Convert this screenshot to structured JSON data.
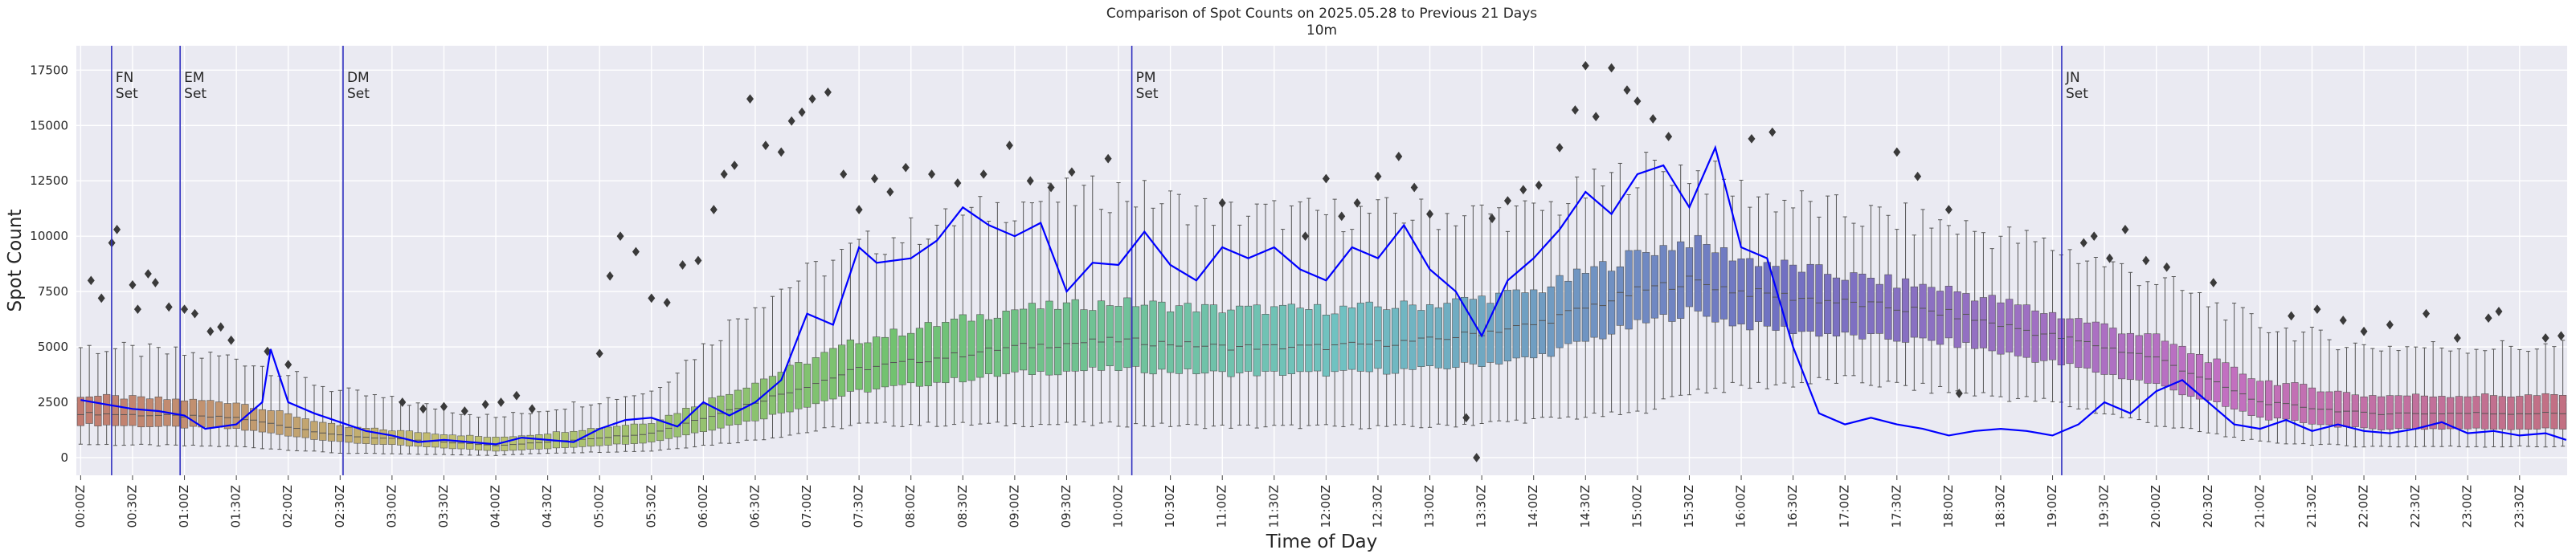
{
  "chart_data": {
    "type": "box",
    "title": "Comparison of Spot Counts on 2025.05.28 to Previous 21 Days",
    "subtitle": "10m",
    "xlabel": "Time of Day",
    "ylabel": "Spot Count",
    "ylim": [
      -800,
      18600
    ],
    "yticks": [
      0,
      2500,
      5000,
      7500,
      10000,
      12500,
      15000,
      17500
    ],
    "ytick_labels": [
      "0",
      "2500",
      "5000",
      "7500",
      "10000",
      "12500",
      "15000",
      "17500"
    ],
    "xtick_labels": [
      "00:00Z",
      "00:30Z",
      "01:00Z",
      "01:30Z",
      "02:00Z",
      "02:30Z",
      "03:00Z",
      "03:30Z",
      "04:00Z",
      "04:30Z",
      "05:00Z",
      "05:30Z",
      "06:00Z",
      "06:30Z",
      "07:00Z",
      "07:30Z",
      "08:00Z",
      "08:30Z",
      "09:00Z",
      "09:30Z",
      "10:00Z",
      "10:30Z",
      "11:00Z",
      "11:30Z",
      "12:00Z",
      "12:30Z",
      "13:00Z",
      "13:30Z",
      "14:00Z",
      "14:30Z",
      "15:00Z",
      "15:30Z",
      "16:00Z",
      "16:30Z",
      "17:00Z",
      "17:30Z",
      "18:00Z",
      "18:30Z",
      "19:00Z",
      "19:30Z",
      "20:00Z",
      "20:30Z",
      "21:00Z",
      "21:30Z",
      "22:00Z",
      "22:30Z",
      "23:00Z",
      "23:30Z"
    ],
    "bins_per_hour": 12,
    "grid": true,
    "background": "#eaeaf2",
    "line_color": "#0000ff",
    "marker_color": "#3030c0",
    "box_percentile_anchors": {
      "hours": [
        0,
        1.5,
        2.5,
        4,
        4.5,
        5.5,
        6.5,
        7.5,
        9,
        10,
        11,
        12,
        13,
        14,
        15,
        15.5,
        16,
        17,
        18,
        19,
        20,
        21,
        22,
        23,
        24
      ],
      "median": [
        2000,
        1800,
        1000,
        550,
        700,
        1100,
        2500,
        4000,
        5000,
        5300,
        5000,
        5000,
        5300,
        6000,
        7500,
        8000,
        7500,
        7000,
        6500,
        5500,
        4500,
        2500,
        2000,
        2000,
        2000
      ],
      "q1": [
        1500,
        1300,
        700,
        300,
        400,
        700,
        1700,
        3000,
        3800,
        4000,
        3800,
        3800,
        4000,
        4500,
        6000,
        6600,
        6000,
        5500,
        5200,
        4300,
        3300,
        1800,
        1300,
        1300,
        1300
      ],
      "q3": [
        2800,
        2500,
        1400,
        900,
        1100,
        1600,
        3400,
        5300,
        6700,
        7000,
        6700,
        6700,
        6900,
        7500,
        9200,
        9800,
        9000,
        8200,
        7600,
        6500,
        5400,
        3500,
        2800,
        2800,
        2800
      ],
      "low": [
        600,
        500,
        200,
        100,
        200,
        300,
        800,
        1500,
        1500,
        1500,
        1400,
        1400,
        1400,
        1700,
        2000,
        3000,
        3200,
        3500,
        3000,
        2500,
        1500,
        700,
        500,
        500,
        500
      ],
      "high": [
        5000,
        4500,
        3000,
        1800,
        2200,
        3000,
        7000,
        9500,
        11500,
        12000,
        11000,
        11000,
        11000,
        11000,
        13000,
        13000,
        12000,
        11000,
        10500,
        9500,
        8000,
        6000,
        5000,
        5000,
        5000
      ]
    },
    "series": [
      {
        "name": "2025.05.28",
        "x_hours": [
          0,
          0.25,
          0.5,
          0.75,
          1,
          1.2,
          1.5,
          1.75,
          1.83,
          2,
          2.25,
          2.5,
          2.75,
          3,
          3.25,
          3.5,
          3.75,
          4,
          4.25,
          4.5,
          4.75,
          5,
          5.25,
          5.5,
          5.75,
          6,
          6.25,
          6.5,
          6.75,
          7,
          7.25,
          7.5,
          7.67,
          8,
          8.25,
          8.5,
          8.75,
          9,
          9.25,
          9.5,
          9.75,
          10,
          10.25,
          10.5,
          10.75,
          11,
          11.25,
          11.5,
          11.75,
          12,
          12.25,
          12.5,
          12.75,
          13,
          13.25,
          13.5,
          13.75,
          14,
          14.25,
          14.5,
          14.75,
          15,
          15.25,
          15.5,
          15.75,
          16,
          16.25,
          16.5,
          16.75,
          17,
          17.25,
          17.5,
          17.75,
          18,
          18.25,
          18.5,
          18.75,
          19,
          19.25,
          19.5,
          19.75,
          20,
          20.25,
          20.5,
          20.75,
          21,
          21.25,
          21.5,
          21.75,
          22,
          22.25,
          22.5,
          22.75,
          23,
          23.25,
          23.5,
          23.75,
          23.95
        ],
        "values": [
          2600,
          2400,
          2200,
          2100,
          1900,
          1300,
          1500,
          2500,
          4900,
          2500,
          2000,
          1600,
          1200,
          1000,
          700,
          800,
          700,
          600,
          900,
          800,
          700,
          1300,
          1700,
          1800,
          1400,
          2500,
          1900,
          2500,
          3500,
          6500,
          6000,
          9500,
          8800,
          9000,
          9800,
          11300,
          10500,
          10000,
          10600,
          7500,
          8800,
          8700,
          10200,
          8700,
          8000,
          9500,
          9000,
          9500,
          8500,
          8000,
          9500,
          9000,
          10500,
          8500,
          7500,
          5500,
          8000,
          9000,
          10300,
          12000,
          11000,
          12800,
          13200,
          11300,
          14000,
          9500,
          9000,
          5000,
          2000,
          1500,
          1800,
          1500,
          1300,
          1000,
          1200,
          1300,
          1200,
          1000,
          1500,
          2500,
          2000,
          3000,
          3500,
          2500,
          1500,
          1300,
          1700,
          1200,
          1500,
          1200,
          1100,
          1300,
          1600,
          1100,
          1200,
          1000,
          1100,
          800
        ]
      }
    ],
    "outliers": [
      {
        "h": 0.1,
        "v": 8000
      },
      {
        "h": 0.2,
        "v": 7200
      },
      {
        "h": 0.3,
        "v": 9700
      },
      {
        "h": 0.35,
        "v": 10300
      },
      {
        "h": 0.5,
        "v": 7800
      },
      {
        "h": 0.55,
        "v": 6700
      },
      {
        "h": 0.65,
        "v": 8300
      },
      {
        "h": 0.72,
        "v": 7900
      },
      {
        "h": 0.85,
        "v": 6800
      },
      {
        "h": 1.0,
        "v": 6700
      },
      {
        "h": 1.1,
        "v": 6500
      },
      {
        "h": 1.25,
        "v": 5700
      },
      {
        "h": 1.35,
        "v": 5900
      },
      {
        "h": 1.45,
        "v": 5300
      },
      {
        "h": 1.8,
        "v": 4800
      },
      {
        "h": 2.0,
        "v": 4200
      },
      {
        "h": 3.1,
        "v": 2500
      },
      {
        "h": 3.3,
        "v": 2200
      },
      {
        "h": 3.5,
        "v": 2300
      },
      {
        "h": 3.7,
        "v": 2100
      },
      {
        "h": 3.9,
        "v": 2400
      },
      {
        "h": 4.05,
        "v": 2500
      },
      {
        "h": 4.2,
        "v": 2800
      },
      {
        "h": 4.35,
        "v": 2200
      },
      {
        "h": 5.0,
        "v": 4700
      },
      {
        "h": 5.1,
        "v": 8200
      },
      {
        "h": 5.2,
        "v": 10000
      },
      {
        "h": 5.35,
        "v": 9300
      },
      {
        "h": 5.5,
        "v": 7200
      },
      {
        "h": 5.65,
        "v": 7000
      },
      {
        "h": 5.8,
        "v": 8700
      },
      {
        "h": 5.95,
        "v": 8900
      },
      {
        "h": 6.1,
        "v": 11200
      },
      {
        "h": 6.2,
        "v": 12800
      },
      {
        "h": 6.3,
        "v": 13200
      },
      {
        "h": 6.45,
        "v": 16200
      },
      {
        "h": 6.6,
        "v": 14100
      },
      {
        "h": 6.75,
        "v": 13800
      },
      {
        "h": 6.85,
        "v": 15200
      },
      {
        "h": 6.95,
        "v": 15600
      },
      {
        "h": 7.05,
        "v": 16200
      },
      {
        "h": 7.2,
        "v": 16500
      },
      {
        "h": 7.35,
        "v": 12800
      },
      {
        "h": 7.5,
        "v": 11200
      },
      {
        "h": 7.65,
        "v": 12600
      },
      {
        "h": 7.8,
        "v": 12000
      },
      {
        "h": 7.95,
        "v": 13100
      },
      {
        "h": 8.2,
        "v": 12800
      },
      {
        "h": 8.45,
        "v": 12400
      },
      {
        "h": 8.7,
        "v": 12800
      },
      {
        "h": 8.95,
        "v": 14100
      },
      {
        "h": 9.15,
        "v": 12500
      },
      {
        "h": 9.35,
        "v": 12200
      },
      {
        "h": 9.55,
        "v": 12900
      },
      {
        "h": 9.9,
        "v": 13500
      },
      {
        "h": 11.0,
        "v": 11500
      },
      {
        "h": 11.8,
        "v": 10000
      },
      {
        "h": 12.0,
        "v": 12600
      },
      {
        "h": 12.15,
        "v": 10900
      },
      {
        "h": 12.3,
        "v": 11500
      },
      {
        "h": 12.5,
        "v": 12700
      },
      {
        "h": 12.7,
        "v": 13600
      },
      {
        "h": 12.85,
        "v": 12200
      },
      {
        "h": 13.0,
        "v": 11000
      },
      {
        "h": 13.35,
        "v": 1800
      },
      {
        "h": 13.45,
        "v": 0
      },
      {
        "h": 13.6,
        "v": 10800
      },
      {
        "h": 13.75,
        "v": 11600
      },
      {
        "h": 13.9,
        "v": 12100
      },
      {
        "h": 14.05,
        "v": 12300
      },
      {
        "h": 14.25,
        "v": 14000
      },
      {
        "h": 14.4,
        "v": 15700
      },
      {
        "h": 14.5,
        "v": 17700
      },
      {
        "h": 14.6,
        "v": 15400
      },
      {
        "h": 14.75,
        "v": 17600
      },
      {
        "h": 14.9,
        "v": 16600
      },
      {
        "h": 15.0,
        "v": 16100
      },
      {
        "h": 15.15,
        "v": 15300
      },
      {
        "h": 15.3,
        "v": 14500
      },
      {
        "h": 16.1,
        "v": 14400
      },
      {
        "h": 16.3,
        "v": 14700
      },
      {
        "h": 17.5,
        "v": 13800
      },
      {
        "h": 17.7,
        "v": 12700
      },
      {
        "h": 18.0,
        "v": 11200
      },
      {
        "h": 18.1,
        "v": 2900
      },
      {
        "h": 19.3,
        "v": 9700
      },
      {
        "h": 19.4,
        "v": 10000
      },
      {
        "h": 19.55,
        "v": 9000
      },
      {
        "h": 19.7,
        "v": 10300
      },
      {
        "h": 19.9,
        "v": 8900
      },
      {
        "h": 20.1,
        "v": 8600
      },
      {
        "h": 20.55,
        "v": 7900
      },
      {
        "h": 21.3,
        "v": 6400
      },
      {
        "h": 21.55,
        "v": 6700
      },
      {
        "h": 21.8,
        "v": 6200
      },
      {
        "h": 22.0,
        "v": 5700
      },
      {
        "h": 22.25,
        "v": 6000
      },
      {
        "h": 22.6,
        "v": 6500
      },
      {
        "h": 22.9,
        "v": 5400
      },
      {
        "h": 23.2,
        "v": 6300
      },
      {
        "h": 23.3,
        "v": 6600
      },
      {
        "h": 23.75,
        "v": 5400
      },
      {
        "h": 23.9,
        "v": 5500
      }
    ],
    "markers": [
      {
        "label": "FN\nSet",
        "hour": 0.34
      },
      {
        "label": "EM\nSet",
        "hour": 1.0
      },
      {
        "label": "DM\nSet",
        "hour": 2.57
      },
      {
        "label": "PM\nSet",
        "hour": 10.17
      },
      {
        "label": "JN\nSet",
        "hour": 19.13
      }
    ]
  }
}
